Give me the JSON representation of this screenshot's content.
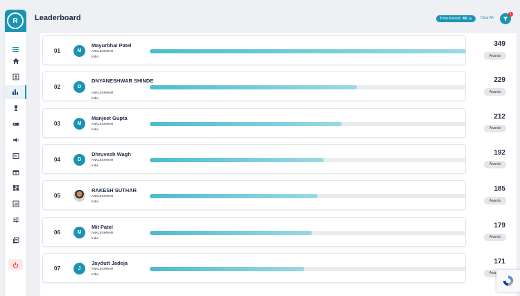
{
  "sidebar": {
    "user_initial": "R",
    "items": [
      {
        "icon": "home-icon"
      },
      {
        "icon": "id-card-icon"
      },
      {
        "icon": "bar-chart-icon",
        "active": true
      },
      {
        "icon": "trophy-icon"
      },
      {
        "icon": "gamepad-icon"
      },
      {
        "icon": "megaphone-icon"
      },
      {
        "icon": "list-card-icon"
      },
      {
        "icon": "gift-icon"
      },
      {
        "icon": "dashboard-icon"
      },
      {
        "icon": "report-icon"
      },
      {
        "icon": "sliders-icon"
      },
      {
        "icon": "library-icon"
      }
    ]
  },
  "header": {
    "title": "Leaderboard",
    "filter_chip_label": "Time Period:",
    "filter_chip_value": "All",
    "clear_all": "Clear All",
    "filter_count": "1"
  },
  "leaderboard": {
    "max_score": 349,
    "rows": [
      {
        "rank": "01",
        "initial": "M",
        "name": "Mayurbhai Patel",
        "city": "ANKLESHWAR",
        "country": "India",
        "score": 349,
        "score_label": "349",
        "awards_label": "Awards"
      },
      {
        "rank": "02",
        "initial": "D",
        "name": "DNYANESHWAR SHINDE",
        "city": "ANKLESHWAR",
        "country": "India",
        "score": 229,
        "score_label": "229",
        "awards_label": "Awards"
      },
      {
        "rank": "03",
        "initial": "M",
        "name": "Manjeet Gupta",
        "city": "ANKLESHWAR",
        "country": "India",
        "score": 212,
        "score_label": "212",
        "awards_label": "Awards"
      },
      {
        "rank": "04",
        "initial": "D",
        "name": "Dhruvesh Wagh",
        "city": "ANKLESHWAR",
        "country": "India",
        "score": 192,
        "score_label": "192",
        "awards_label": "Awards"
      },
      {
        "rank": "05",
        "initial": "",
        "photo": true,
        "name": "RAKESH SUTHAR",
        "city": "ANKLESHWAR",
        "country": "India",
        "score": 185,
        "score_label": "185",
        "awards_label": "Awards"
      },
      {
        "rank": "06",
        "initial": "M",
        "name": "Mit Patel",
        "city": "ANKLESHWAR",
        "country": "India",
        "score": 179,
        "score_label": "179",
        "awards_label": "Awards"
      },
      {
        "rank": "07",
        "initial": "J",
        "name": "Jaydutt Jadeja",
        "city": "ANKLESHWAR",
        "country": "India",
        "score": 171,
        "score_label": "171",
        "awards_label": "Awards"
      }
    ]
  },
  "colors": {
    "accent": "#1a94b3",
    "bar_start": "#4bbdd0",
    "bar_end": "#9bd9e4",
    "logout": "#e33"
  }
}
